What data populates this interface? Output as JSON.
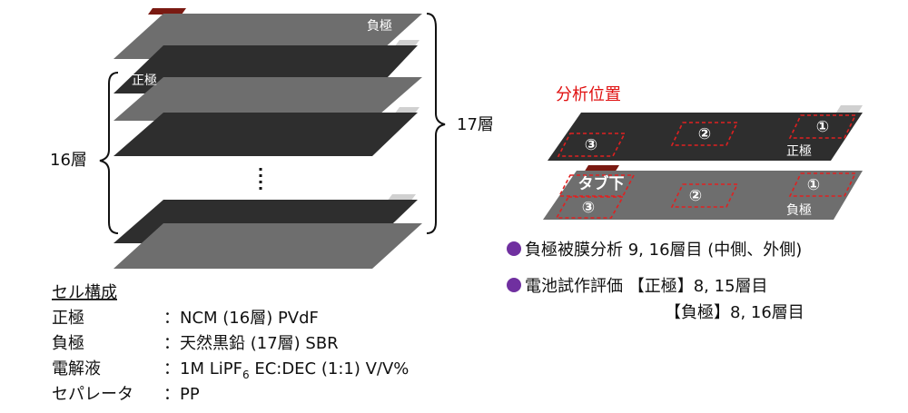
{
  "stack": {
    "top_label": "負極",
    "second_label": "正極",
    "left_brace_label": "16層",
    "right_brace_label": "17層"
  },
  "composition": {
    "title": "セル構成",
    "rows": [
      {
        "label": "正極",
        "value": "：NCM (16層) PVdF"
      },
      {
        "label": "負極",
        "value": "：天然黒鉛 (17層) SBR"
      },
      {
        "label": "電解液",
        "value": [
          "：1M LiPF",
          "6",
          " EC:DEC (1:1) V/V%"
        ]
      },
      {
        "label": "セパレータ",
        "value": "：PP"
      }
    ]
  },
  "analysis": {
    "title": "分析位置",
    "positive": {
      "markers": [
        "①",
        "②",
        "③"
      ],
      "label": "正極"
    },
    "negative": {
      "tab_label": "タブ下",
      "markers": [
        "①",
        "②",
        "③"
      ],
      "label": "負極"
    }
  },
  "notes": [
    {
      "text": "負極被膜分析 9, 16層目 (中側、外側)"
    },
    {
      "text": "電池試作評価 【正極】8, 15層目",
      "continuation": "【負極】8, 16層目"
    }
  ]
}
